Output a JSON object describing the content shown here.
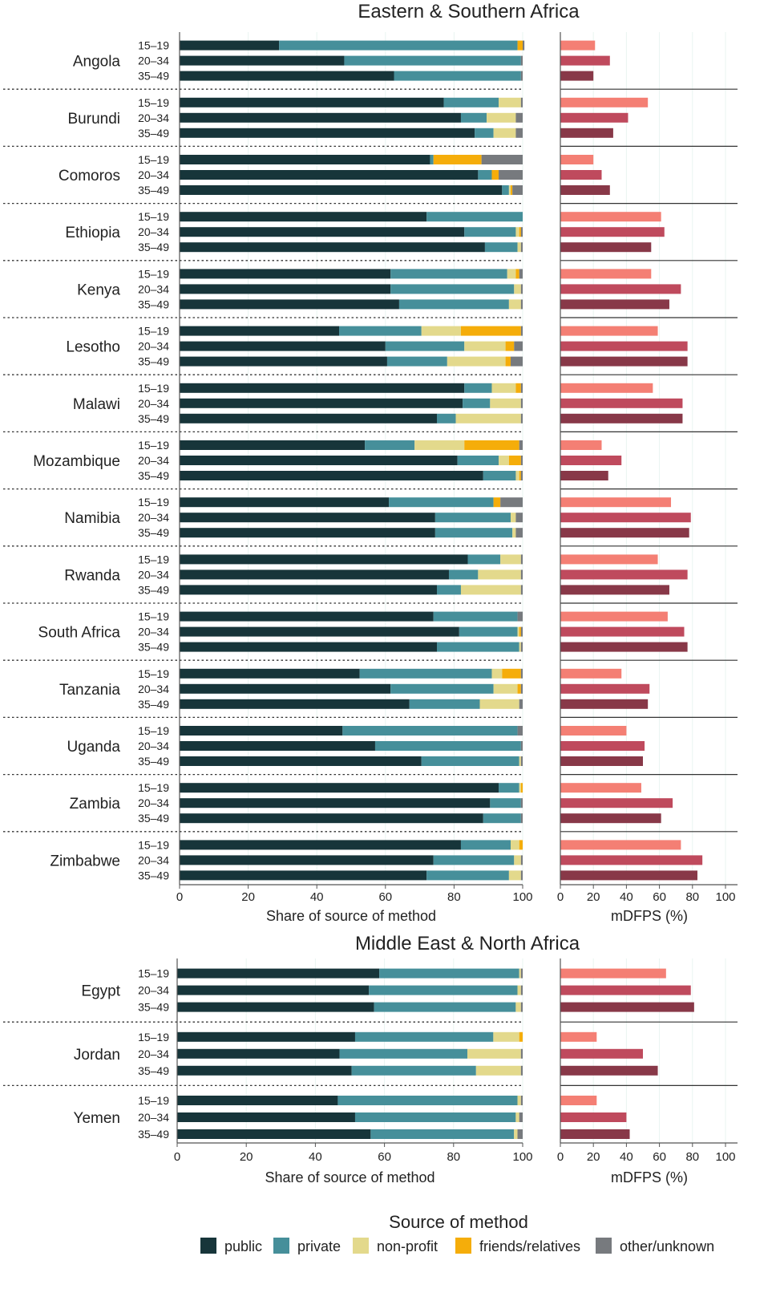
{
  "chart_data": {
    "type": "bar",
    "orientation": "horizontal",
    "stacked": true,
    "sources": [
      "public",
      "private",
      "non-profit",
      "friends/relatives",
      "other/unknown"
    ],
    "age_groups": [
      "15–19",
      "20–34",
      "35–49"
    ],
    "colors": {
      "public": "#17353a",
      "private": "#468f9a",
      "non-profit": "#e3d98c",
      "friends/relatives": "#f5ad0a",
      "other/unknown": "#777a7e",
      "mdfps": [
        "#f47f74",
        "#bf4a5d",
        "#883848"
      ],
      "grid": "#e9f4f1",
      "axis": "#555555",
      "separator": "#333333"
    },
    "xticks": [
      "0",
      "20",
      "40",
      "60",
      "80",
      "100"
    ],
    "xlabel_share": "Share of source of method",
    "xlabel_mdfps": "mDFPS (%)",
    "xlim": [
      0,
      100
    ],
    "legend": {
      "title": "Source of method",
      "position": "bottom"
    },
    "panels": [
      {
        "title": "Eastern & Southern Africa",
        "countries": [
          {
            "name": "Angola",
            "share": [
              [
                29,
                69.5,
                0,
                1.5,
                0.5
              ],
              [
                48,
                51.5,
                0,
                0,
                0.5
              ],
              [
                62.5,
                37,
                0,
                0,
                0.5
              ]
            ],
            "mdfps": [
              21,
              30,
              20
            ]
          },
          {
            "name": "Burundi",
            "share": [
              [
                77,
                16,
                6.5,
                0,
                0.5
              ],
              [
                82,
                7.5,
                8.5,
                0,
                2
              ],
              [
                86,
                5.5,
                6.5,
                0,
                2
              ]
            ],
            "mdfps": [
              53,
              41,
              32
            ]
          },
          {
            "name": "Comoros",
            "share": [
              [
                73,
                1,
                0,
                14,
                12
              ],
              [
                87,
                4,
                0,
                2,
                7
              ],
              [
                94,
                2,
                0.5,
                0.5,
                3
              ]
            ],
            "mdfps": [
              20,
              25,
              30
            ]
          },
          {
            "name": "Ethiopia",
            "share": [
              [
                72,
                28,
                0,
                0,
                0
              ],
              [
                83,
                15,
                1,
                0.5,
                0.5
              ],
              [
                89,
                9.5,
                1,
                0,
                0.5
              ]
            ],
            "mdfps": [
              61,
              63,
              55
            ]
          },
          {
            "name": "Kenya",
            "share": [
              [
                61.5,
                34,
                2.5,
                1,
                1
              ],
              [
                61.5,
                36,
                2,
                0,
                0.5
              ],
              [
                64,
                32,
                3.5,
                0,
                0.5
              ]
            ],
            "mdfps": [
              55,
              73,
              66
            ]
          },
          {
            "name": "Lesotho",
            "share": [
              [
                46.5,
                24,
                11.5,
                17.5,
                0.5
              ],
              [
                60,
                23,
                12,
                2.5,
                2.5
              ],
              [
                60.5,
                17.5,
                17,
                1.5,
                3.5
              ]
            ],
            "mdfps": [
              59,
              77,
              77
            ]
          },
          {
            "name": "Malawi",
            "share": [
              [
                83,
                8,
                7,
                1.5,
                0.5
              ],
              [
                82.5,
                8,
                9,
                0,
                0.5
              ],
              [
                75,
                5.5,
                19,
                0,
                0.5
              ]
            ],
            "mdfps": [
              56,
              74,
              74
            ]
          },
          {
            "name": "Mozambique",
            "share": [
              [
                54,
                14.5,
                14.5,
                16,
                1
              ],
              [
                81,
                12,
                3,
                3.5,
                0.5
              ],
              [
                88.5,
                9.5,
                1,
                0.5,
                0.5
              ]
            ],
            "mdfps": [
              25,
              37,
              29
            ]
          },
          {
            "name": "Namibia",
            "share": [
              [
                61,
                30.5,
                0,
                2,
                6.5
              ],
              [
                74.5,
                22,
                1.5,
                0,
                2
              ],
              [
                74.5,
                22.5,
                1,
                0,
                2
              ]
            ],
            "mdfps": [
              67,
              79,
              78
            ]
          },
          {
            "name": "Rwanda",
            "share": [
              [
                84,
                9.5,
                6,
                0,
                0.5
              ],
              [
                78.5,
                8.5,
                12.5,
                0,
                0.5
              ],
              [
                75,
                7,
                17.5,
                0,
                0.5
              ]
            ],
            "mdfps": [
              59,
              77,
              66
            ]
          },
          {
            "name": "South Africa",
            "share": [
              [
                74,
                24.5,
                0,
                0,
                1.5
              ],
              [
                81.5,
                17,
                0.5,
                0.5,
                0.5
              ],
              [
                75,
                24,
                0.5,
                0,
                0.5
              ]
            ],
            "mdfps": [
              65,
              75,
              77
            ]
          },
          {
            "name": "Tanzania",
            "share": [
              [
                52.5,
                38.5,
                3,
                5.5,
                0.5
              ],
              [
                61.5,
                30,
                7,
                1,
                0.5
              ],
              [
                67,
                20.5,
                11.5,
                0,
                1
              ]
            ],
            "mdfps": [
              37,
              54,
              53
            ]
          },
          {
            "name": "Uganda",
            "share": [
              [
                47.5,
                51,
                0,
                0,
                1.5
              ],
              [
                57,
                42.5,
                0,
                0,
                0.5
              ],
              [
                70.5,
                28.5,
                0.5,
                0,
                0.5
              ]
            ],
            "mdfps": [
              40,
              51,
              50
            ]
          },
          {
            "name": "Zambia",
            "share": [
              [
                93,
                6,
                0.5,
                0.5,
                0
              ],
              [
                90.5,
                9,
                0,
                0,
                0.5
              ],
              [
                88.5,
                11,
                0,
                0,
                0.5
              ]
            ],
            "mdfps": [
              49,
              68,
              61
            ]
          },
          {
            "name": "Zimbabwe",
            "share": [
              [
                82,
                14.5,
                2.5,
                1,
                0
              ],
              [
                74,
                23.5,
                2,
                0,
                0.5
              ],
              [
                72,
                24,
                3.5,
                0,
                0.5
              ]
            ],
            "mdfps": [
              73,
              86,
              83
            ]
          }
        ]
      },
      {
        "title": "Middle East & North Africa",
        "countries": [
          {
            "name": "Egypt",
            "share": [
              [
                58.5,
                40.5,
                0.5,
                0,
                0.5
              ],
              [
                55.5,
                43,
                1,
                0,
                0.5
              ],
              [
                57,
                41,
                1.5,
                0,
                0.5
              ]
            ],
            "mdfps": [
              64,
              79,
              81
            ]
          },
          {
            "name": "Jordan",
            "share": [
              [
                51.5,
                40,
                7.5,
                1,
                0
              ],
              [
                47,
                37,
                15.5,
                0,
                0.5
              ],
              [
                50.5,
                36,
                13,
                0,
                0.5
              ]
            ],
            "mdfps": [
              22,
              50,
              59
            ]
          },
          {
            "name": "Yemen",
            "share": [
              [
                46.5,
                52,
                1,
                0,
                0.5
              ],
              [
                51.5,
                46.5,
                1,
                0,
                1
              ],
              [
                56,
                41.5,
                1,
                0,
                1.5
              ]
            ],
            "mdfps": [
              22,
              40,
              42
            ]
          }
        ]
      }
    ]
  }
}
